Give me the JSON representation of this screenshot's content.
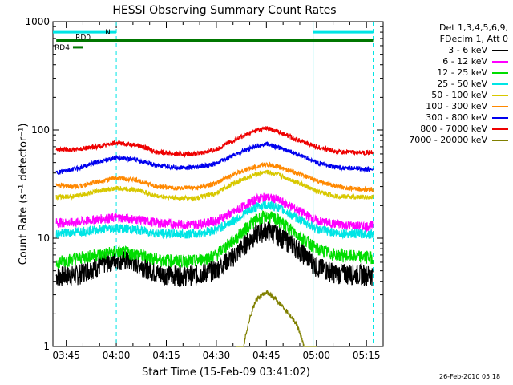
{
  "chart_data": {
    "type": "line",
    "title": "HESSI Observing Summary Count Rates",
    "xlabel": "Start Time (15-Feb-09 03:41:02)",
    "ylabel": "Count Rate (s⁻¹ detector⁻¹)",
    "yscale": "log",
    "ylim": [
      1,
      1000
    ],
    "xlim": [
      "03:41",
      "05:20"
    ],
    "x_ticks": [
      "03:45",
      "04:00",
      "04:15",
      "04:30",
      "04:45",
      "05:00",
      "05:15"
    ],
    "y_ticks": [
      "1",
      "10",
      "100",
      "1000"
    ],
    "x": [
      "03:42",
      "03:48",
      "03:54",
      "04:00",
      "04:06",
      "04:12",
      "04:18",
      "04:24",
      "04:30",
      "04:36",
      "04:42",
      "04:45",
      "04:48",
      "04:54",
      "05:00",
      "05:06",
      "05:12",
      "05:17"
    ],
    "series": [
      {
        "name": "3 - 6 keV",
        "color": "#000000",
        "values": [
          4.5,
          4.6,
          5.5,
          6.5,
          6.0,
          4.8,
          4.6,
          4.6,
          5.2,
          7.2,
          11,
          12,
          11,
          8.2,
          5.5,
          4.8,
          4.7,
          4.6
        ]
      },
      {
        "name": "6 - 12 keV",
        "color": "#ff00ff",
        "values": [
          14,
          14,
          15,
          15.5,
          15,
          14,
          13.5,
          13.5,
          14.5,
          18,
          23,
          24,
          23,
          18.5,
          14.5,
          13.5,
          13,
          13
        ]
      },
      {
        "name": "12 - 25 keV",
        "color": "#00dd00",
        "values": [
          6,
          6.5,
          7,
          7.5,
          7.2,
          6.4,
          6.2,
          6.2,
          7,
          10,
          15,
          16,
          15,
          11,
          8,
          7,
          6.8,
          6.7
        ]
      },
      {
        "name": "25 - 50 keV",
        "color": "#00e5e5",
        "values": [
          11,
          11.5,
          12,
          12.5,
          12,
          11.2,
          11,
          11,
          12,
          15,
          19.5,
          20.5,
          19.5,
          15.5,
          12.2,
          11.2,
          11,
          11
        ]
      },
      {
        "name": "50 - 100 keV",
        "color": "#d8c800",
        "values": [
          24,
          24.5,
          27,
          29,
          28,
          24.5,
          23.5,
          23.5,
          26,
          33,
          39,
          41,
          39,
          33,
          27,
          24.5,
          24,
          24
        ]
      },
      {
        "name": "100 - 300 keV",
        "color": "#ff8800",
        "values": [
          31,
          30,
          33,
          36,
          34.5,
          30,
          29,
          29,
          32,
          40,
          46,
          48,
          46,
          40,
          34,
          30,
          28.5,
          28
        ]
      },
      {
        "name": "300 - 800 keV",
        "color": "#0000ee",
        "values": [
          40,
          44,
          50,
          56,
          53,
          47,
          45,
          45,
          49,
          60,
          71,
          74,
          70,
          60,
          50,
          45,
          44,
          43
        ]
      },
      {
        "name": "800 - 7000 keV",
        "color": "#ee0000",
        "values": [
          66,
          66,
          70,
          76,
          73,
          63,
          60,
          60,
          66,
          82,
          99,
          104,
          98,
          82,
          70,
          63,
          62,
          62
        ]
      },
      {
        "name": "7000 - 20000 keV",
        "color": "#808000",
        "values": [
          0,
          0,
          0,
          0,
          0,
          0,
          0,
          0,
          0,
          0,
          2.7,
          3.2,
          2.7,
          1.6,
          0,
          0,
          0,
          0
        ]
      }
    ],
    "markers": [
      {
        "label": "N",
        "color": "#00e5e5",
        "y": 800,
        "segments": [
          [
            "03:41",
            "04:00"
          ],
          [
            "04:59",
            "05:17"
          ]
        ]
      },
      {
        "label": "RD0",
        "color": "#007700",
        "y": 670,
        "segments": [
          [
            "03:42",
            "05:17"
          ]
        ]
      },
      {
        "label": "RD4",
        "color": "#007700",
        "y": 580,
        "segments": [
          [
            "03:47",
            "03:50"
          ]
        ]
      }
    ],
    "vlines": [
      {
        "x": "04:00",
        "color": "#00e5e5",
        "style": "dashed"
      },
      {
        "x": "04:59",
        "color": "#00e5e5",
        "style": "solid"
      },
      {
        "x": "05:17",
        "color": "#00e5e5",
        "style": "dashed"
      }
    ]
  },
  "legend": {
    "header_lines": [
      "Det 1,3,4,5,6,9,",
      "FDecim 1, Att 0"
    ]
  },
  "footer": {
    "timestamp": "26-Feb-2010 05:18"
  }
}
